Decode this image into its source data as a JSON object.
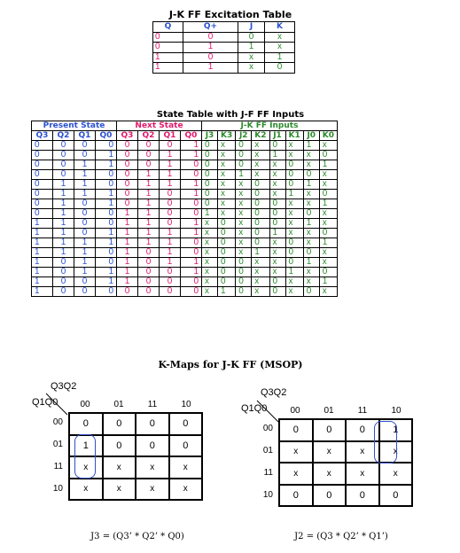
{
  "excitation": {
    "title": "J-K FF Excitation Table",
    "headers": [
      "Q",
      "Q+",
      "J",
      "K"
    ],
    "rows": [
      [
        "0",
        "0",
        "0",
        "x"
      ],
      [
        "0",
        "1",
        "1",
        "x"
      ],
      [
        "1",
        "0",
        "x",
        "1"
      ],
      [
        "1",
        "1",
        "x",
        "0"
      ]
    ]
  },
  "state_table": {
    "title": "State Table with J-F FF Inputs",
    "group_headers": [
      "Present State",
      "Next State",
      "J-K FF Inputs"
    ],
    "headers": [
      "Q3",
      "Q2",
      "Q1",
      "Q0",
      "Q3",
      "Q2",
      "Q1",
      "Q0",
      "J3",
      "K3",
      "J2",
      "K2",
      "J1",
      "K1",
      "J0",
      "K0"
    ],
    "rows": [
      [
        "0",
        "0",
        "0",
        "0",
        "0",
        "0",
        "0",
        "1",
        "0",
        "x",
        "0",
        "x",
        "0",
        "x",
        "1",
        "x"
      ],
      [
        "0",
        "0",
        "0",
        "1",
        "0",
        "0",
        "1",
        "1",
        "0",
        "x",
        "0",
        "x",
        "1",
        "x",
        "x",
        "0"
      ],
      [
        "0",
        "0",
        "1",
        "1",
        "0",
        "0",
        "1",
        "0",
        "0",
        "x",
        "0",
        "x",
        "x",
        "0",
        "x",
        "1"
      ],
      [
        "0",
        "0",
        "1",
        "0",
        "0",
        "1",
        "1",
        "0",
        "0",
        "x",
        "1",
        "x",
        "x",
        "0",
        "0",
        "x"
      ],
      [
        "0",
        "1",
        "1",
        "0",
        "0",
        "1",
        "1",
        "1",
        "0",
        "x",
        "x",
        "0",
        "x",
        "0",
        "1",
        "x"
      ],
      [
        "0",
        "1",
        "1",
        "1",
        "0",
        "1",
        "0",
        "1",
        "0",
        "x",
        "x",
        "0",
        "x",
        "1",
        "x",
        "0"
      ],
      [
        "0",
        "1",
        "0",
        "1",
        "0",
        "1",
        "0",
        "0",
        "0",
        "x",
        "x",
        "0",
        "0",
        "x",
        "x",
        "1"
      ],
      [
        "0",
        "1",
        "0",
        "0",
        "1",
        "1",
        "0",
        "0",
        "1",
        "x",
        "x",
        "0",
        "0",
        "x",
        "0",
        "x"
      ],
      [
        "1",
        "1",
        "0",
        "0",
        "1",
        "1",
        "0",
        "1",
        "x",
        "0",
        "x",
        "0",
        "0",
        "x",
        "1",
        "x"
      ],
      [
        "1",
        "1",
        "0",
        "1",
        "1",
        "1",
        "1",
        "1",
        "x",
        "0",
        "x",
        "0",
        "1",
        "x",
        "x",
        "0"
      ],
      [
        "1",
        "1",
        "1",
        "1",
        "1",
        "1",
        "1",
        "0",
        "x",
        "0",
        "x",
        "0",
        "x",
        "0",
        "x",
        "1"
      ],
      [
        "1",
        "1",
        "1",
        "0",
        "1",
        "0",
        "1",
        "0",
        "x",
        "0",
        "x",
        "1",
        "x",
        "0",
        "0",
        "x"
      ],
      [
        "1",
        "0",
        "1",
        "0",
        "1",
        "0",
        "1",
        "1",
        "x",
        "0",
        "0",
        "x",
        "x",
        "0",
        "1",
        "x"
      ],
      [
        "1",
        "0",
        "1",
        "1",
        "1",
        "0",
        "0",
        "1",
        "x",
        "0",
        "0",
        "x",
        "x",
        "1",
        "x",
        "0"
      ],
      [
        "1",
        "0",
        "0",
        "1",
        "1",
        "0",
        "0",
        "0",
        "x",
        "0",
        "0",
        "x",
        "0",
        "x",
        "x",
        "1"
      ],
      [
        "1",
        "0",
        "0",
        "0",
        "0",
        "0",
        "0",
        "0",
        "x",
        "1",
        "0",
        "x",
        "0",
        "x",
        "0",
        "x"
      ]
    ]
  },
  "kmaps": {
    "title": "K-Maps for J-K FF (MSOP)",
    "maps": [
      {
        "col_var": "Q3Q2",
        "row_var": "Q1Q0",
        "col_headers": [
          "00",
          "01",
          "11",
          "10"
        ],
        "row_headers": [
          "00",
          "01",
          "11",
          "10"
        ],
        "cells": [
          [
            "0",
            "0",
            "0",
            "0"
          ],
          [
            "1",
            "0",
            "0",
            "0"
          ],
          [
            "x",
            "x",
            "x",
            "x"
          ],
          [
            "x",
            "x",
            "x",
            "x"
          ]
        ],
        "equation": "J3 = (Q3’ * Q2’ * Q0)"
      },
      {
        "col_var": "Q3Q2",
        "row_var": "Q1Q0",
        "col_headers": [
          "00",
          "01",
          "11",
          "10"
        ],
        "row_headers": [
          "00",
          "01",
          "11",
          "10"
        ],
        "cells": [
          [
            "0",
            "0",
            "0",
            "1"
          ],
          [
            "x",
            "x",
            "x",
            "x"
          ],
          [
            "x",
            "x",
            "x",
            "x"
          ],
          [
            "0",
            "0",
            "0",
            "0"
          ]
        ],
        "equation": "J2 = (Q3 * Q2’ * Q1’)"
      }
    ]
  },
  "colors": {
    "present_state": "#2a50d0",
    "next_state": "#e0196a",
    "ff_inputs": "#2c8a2c",
    "group_outline": "#3050c8"
  }
}
